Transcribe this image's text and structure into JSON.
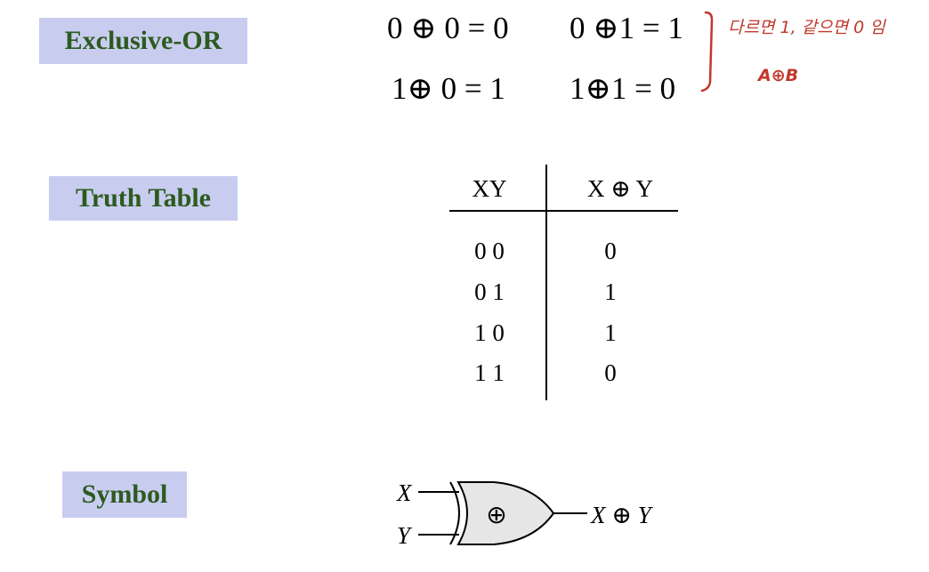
{
  "labels": {
    "exclusive_or": "Exclusive-OR",
    "truth_table": "Truth Table",
    "symbol": "Symbol"
  },
  "equations": {
    "e00": "0 ⊕ 0 = 0",
    "e01": "0 ⊕1 = 1",
    "e10": "1⊕ 0 = 1",
    "e11": "1⊕1 = 0"
  },
  "notes": {
    "line1": "다르면 1, 같으면 0 임",
    "line2": "A⊕B"
  },
  "truth_table": {
    "header_inputs": "XY",
    "header_output": "X ⊕ Y",
    "rows": [
      {
        "inputs": "0 0",
        "output": "0"
      },
      {
        "inputs": "0 1",
        "output": "1"
      },
      {
        "inputs": "1 0",
        "output": "1"
      },
      {
        "inputs": "1 1",
        "output": "0"
      }
    ]
  },
  "gate": {
    "input_x": "X",
    "input_y": "Y",
    "symbol": "⊕",
    "output": "X ⊕ Y"
  },
  "colors": {
    "label_bg": "#c8cdf0",
    "label_text": "#2d5a1e",
    "annotation": "#c0392b",
    "gate_fill": "#e6e6e6"
  }
}
